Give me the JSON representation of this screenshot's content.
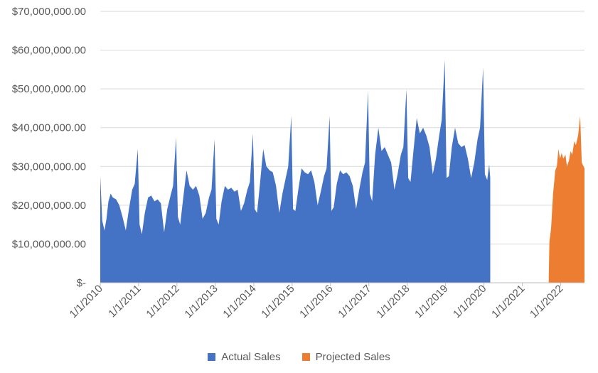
{
  "chart_data": {
    "type": "area",
    "title": "",
    "xlabel": "",
    "ylabel": "",
    "ylim": [
      0,
      70000000
    ],
    "xlim": [
      "2010-01-01",
      "2022-08-15"
    ],
    "y_ticks": [
      "$-",
      "$10,000,000.00",
      "$20,000,000.00",
      "$30,000,000.00",
      "$40,000,000.00",
      "$50,000,000.00",
      "$60,000,000.00",
      "$70,000,000.00"
    ],
    "x_ticks": [
      "1/1/2010",
      "1/1/2011",
      "1/1/2012",
      "1/1/2013",
      "1/1/2014",
      "1/1/2015",
      "1/1/2016",
      "1/1/2017",
      "1/1/2018",
      "1/1/2019",
      "1/1/2020",
      "1/1/2021",
      "1/1/2022"
    ],
    "grid": true,
    "legend_position": "bottom",
    "series": [
      {
        "name": "Actual Sales",
        "color": "#4472C4",
        "points": [
          [
            "2010-01-01",
            27500000
          ],
          [
            "2010-01-20",
            16000000
          ],
          [
            "2010-02-10",
            13500000
          ],
          [
            "2010-03-01",
            16500000
          ],
          [
            "2010-03-20",
            21000000
          ],
          [
            "2010-04-10",
            23000000
          ],
          [
            "2010-05-01",
            22000000
          ],
          [
            "2010-06-01",
            21500000
          ],
          [
            "2010-07-01",
            20000000
          ],
          [
            "2010-08-01",
            17000000
          ],
          [
            "2010-09-01",
            13500000
          ],
          [
            "2010-10-01",
            19000000
          ],
          [
            "2010-11-01",
            24000000
          ],
          [
            "2010-11-25",
            25500000
          ],
          [
            "2010-12-24",
            34500000
          ],
          [
            "2011-01-10",
            15000000
          ],
          [
            "2011-02-01",
            12500000
          ],
          [
            "2011-03-01",
            18000000
          ],
          [
            "2011-04-01",
            22000000
          ],
          [
            "2011-05-01",
            22500000
          ],
          [
            "2011-06-01",
            21000000
          ],
          [
            "2011-07-01",
            21500000
          ],
          [
            "2011-08-01",
            20500000
          ],
          [
            "2011-09-01",
            13000000
          ],
          [
            "2011-10-01",
            19000000
          ],
          [
            "2011-11-01",
            22500000
          ],
          [
            "2011-11-25",
            25000000
          ],
          [
            "2011-12-24",
            37500000
          ],
          [
            "2012-01-10",
            17000000
          ],
          [
            "2012-02-01",
            15000000
          ],
          [
            "2012-03-01",
            22000000
          ],
          [
            "2012-04-01",
            29000000
          ],
          [
            "2012-05-01",
            25000000
          ],
          [
            "2012-06-01",
            24000000
          ],
          [
            "2012-07-01",
            25000000
          ],
          [
            "2012-08-01",
            22500000
          ],
          [
            "2012-09-01",
            16500000
          ],
          [
            "2012-10-01",
            18000000
          ],
          [
            "2012-11-01",
            22000000
          ],
          [
            "2012-11-25",
            24000000
          ],
          [
            "2012-12-24",
            37000000
          ],
          [
            "2013-01-10",
            16500000
          ],
          [
            "2013-02-01",
            15000000
          ],
          [
            "2013-03-01",
            21000000
          ],
          [
            "2013-04-01",
            25000000
          ],
          [
            "2013-05-01",
            24000000
          ],
          [
            "2013-06-01",
            24500000
          ],
          [
            "2013-07-01",
            23500000
          ],
          [
            "2013-08-01",
            24000000
          ],
          [
            "2013-09-01",
            18500000
          ],
          [
            "2013-10-01",
            20500000
          ],
          [
            "2013-11-01",
            24000000
          ],
          [
            "2013-11-25",
            26000000
          ],
          [
            "2013-12-24",
            38500000
          ],
          [
            "2014-01-10",
            19000000
          ],
          [
            "2014-02-01",
            18000000
          ],
          [
            "2014-03-01",
            25500000
          ],
          [
            "2014-04-01",
            34500000
          ],
          [
            "2014-05-01",
            30000000
          ],
          [
            "2014-06-01",
            29000000
          ],
          [
            "2014-07-01",
            28500000
          ],
          [
            "2014-08-01",
            25000000
          ],
          [
            "2014-09-01",
            18000000
          ],
          [
            "2014-10-01",
            23000000
          ],
          [
            "2014-11-01",
            27000000
          ],
          [
            "2014-11-25",
            30000000
          ],
          [
            "2014-12-24",
            43000000
          ],
          [
            "2015-01-10",
            19000000
          ],
          [
            "2015-02-01",
            18500000
          ],
          [
            "2015-03-01",
            24000000
          ],
          [
            "2015-04-01",
            29500000
          ],
          [
            "2015-05-01",
            28500000
          ],
          [
            "2015-06-01",
            28000000
          ],
          [
            "2015-07-01",
            29000000
          ],
          [
            "2015-08-01",
            26000000
          ],
          [
            "2015-09-01",
            20000000
          ],
          [
            "2015-10-01",
            23500000
          ],
          [
            "2015-11-01",
            27500000
          ],
          [
            "2015-11-25",
            29500000
          ],
          [
            "2015-12-24",
            43000000
          ],
          [
            "2016-01-10",
            18500000
          ],
          [
            "2016-02-01",
            19500000
          ],
          [
            "2016-03-01",
            25500000
          ],
          [
            "2016-04-01",
            29000000
          ],
          [
            "2016-05-01",
            28000000
          ],
          [
            "2016-06-01",
            28500000
          ],
          [
            "2016-07-01",
            27500000
          ],
          [
            "2016-08-01",
            25000000
          ],
          [
            "2016-09-01",
            19000000
          ],
          [
            "2016-10-01",
            24000000
          ],
          [
            "2016-11-01",
            28500000
          ],
          [
            "2016-11-25",
            31000000
          ],
          [
            "2016-12-24",
            49500000
          ],
          [
            "2017-01-10",
            23000000
          ],
          [
            "2017-02-01",
            21000000
          ],
          [
            "2017-03-01",
            33000000
          ],
          [
            "2017-04-01",
            40000000
          ],
          [
            "2017-05-01",
            34000000
          ],
          [
            "2017-06-01",
            35000000
          ],
          [
            "2017-07-01",
            33000000
          ],
          [
            "2017-08-01",
            31000000
          ],
          [
            "2017-09-01",
            24000000
          ],
          [
            "2017-10-01",
            28000000
          ],
          [
            "2017-11-01",
            33000000
          ],
          [
            "2017-11-25",
            35000000
          ],
          [
            "2017-12-24",
            50000000
          ],
          [
            "2018-01-10",
            27000000
          ],
          [
            "2018-02-01",
            26000000
          ],
          [
            "2018-03-01",
            34000000
          ],
          [
            "2018-04-01",
            42500000
          ],
          [
            "2018-05-01",
            38500000
          ],
          [
            "2018-06-01",
            40000000
          ],
          [
            "2018-07-01",
            38000000
          ],
          [
            "2018-08-01",
            35000000
          ],
          [
            "2018-09-01",
            28000000
          ],
          [
            "2018-10-01",
            32000000
          ],
          [
            "2018-11-01",
            38000000
          ],
          [
            "2018-11-25",
            42000000
          ],
          [
            "2018-12-24",
            57500000
          ],
          [
            "2019-01-10",
            27000000
          ],
          [
            "2019-02-01",
            27500000
          ],
          [
            "2019-03-01",
            35000000
          ],
          [
            "2019-04-01",
            40000000
          ],
          [
            "2019-05-01",
            36000000
          ],
          [
            "2019-06-01",
            35000000
          ],
          [
            "2019-07-01",
            35500000
          ],
          [
            "2019-08-01",
            32000000
          ],
          [
            "2019-09-01",
            27000000
          ],
          [
            "2019-10-01",
            31000000
          ],
          [
            "2019-11-01",
            37000000
          ],
          [
            "2019-11-25",
            40000000
          ],
          [
            "2019-12-24",
            55500000
          ],
          [
            "2020-01-10",
            28000000
          ],
          [
            "2020-02-01",
            26500000
          ],
          [
            "2020-02-20",
            30500000
          ],
          [
            "2020-03-01",
            27000000
          ]
        ]
      },
      {
        "name": "Projected Sales",
        "color": "#ED7D31",
        "points": [
          [
            "2021-09-08",
            0
          ],
          [
            "2021-09-15",
            10500000
          ],
          [
            "2021-10-01",
            14000000
          ],
          [
            "2021-10-20",
            23000000
          ],
          [
            "2021-11-10",
            29000000
          ],
          [
            "2021-11-25",
            30000000
          ],
          [
            "2021-12-10",
            34500000
          ],
          [
            "2021-12-25",
            32000000
          ],
          [
            "2022-01-10",
            33500000
          ],
          [
            "2022-01-25",
            32000000
          ],
          [
            "2022-02-15",
            33000000
          ],
          [
            "2022-03-01",
            30000000
          ],
          [
            "2022-03-20",
            31500000
          ],
          [
            "2022-04-05",
            34000000
          ],
          [
            "2022-04-20",
            33000000
          ],
          [
            "2022-05-10",
            36500000
          ],
          [
            "2022-05-25",
            35500000
          ],
          [
            "2022-06-15",
            38000000
          ],
          [
            "2022-07-05",
            43000000
          ],
          [
            "2022-07-20",
            31000000
          ],
          [
            "2022-08-15",
            29500000
          ]
        ]
      }
    ]
  }
}
